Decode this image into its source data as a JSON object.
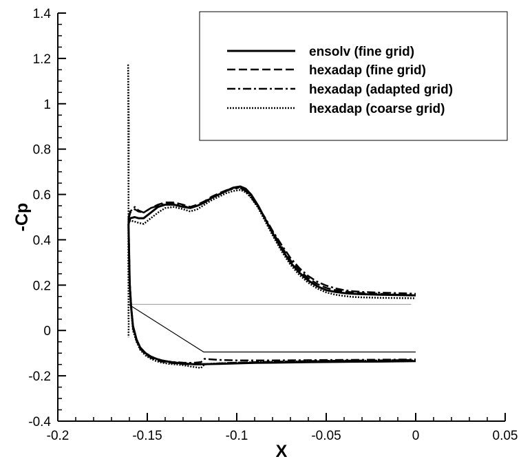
{
  "chart_data": {
    "type": "line",
    "xlabel": "X",
    "ylabel": "-Cp",
    "xlim": [
      -0.2,
      0.05
    ],
    "ylim": [
      -0.4,
      1.4
    ],
    "x_ticks": [
      -0.2,
      -0.15,
      -0.1,
      -0.05,
      0,
      0.05
    ],
    "x_tick_labels": [
      "-0.2",
      "-0.15",
      "-0.1",
      "-0.05",
      "0",
      "0.05"
    ],
    "y_ticks": [
      -0.4,
      -0.2,
      0,
      0.2,
      0.4,
      0.6,
      0.8,
      1,
      1.2,
      1.4
    ],
    "y_tick_labels": [
      "-0.4",
      "-0.2",
      "0",
      "0.2",
      "0.4",
      "0.6",
      "0.8",
      "1",
      "1.2",
      "1.4"
    ],
    "grid": false,
    "legend_position": "top-right",
    "series": [
      {
        "name": "ensolv (fine grid)",
        "dash": "solid",
        "upper": {
          "x": [
            -0.1605,
            -0.1595,
            -0.157,
            -0.155,
            -0.152,
            -0.148,
            -0.144,
            -0.14,
            -0.135,
            -0.13,
            -0.126,
            -0.122,
            -0.118,
            -0.114,
            -0.11,
            -0.106,
            -0.102,
            -0.098,
            -0.095,
            -0.092,
            -0.088,
            -0.084,
            -0.08,
            -0.075,
            -0.07,
            -0.065,
            -0.06,
            -0.055,
            -0.05,
            -0.045,
            -0.04,
            -0.035,
            -0.03,
            -0.02,
            -0.01,
            0.0
          ],
          "y": [
            0.47,
            0.495,
            0.5,
            0.495,
            0.495,
            0.52,
            0.545,
            0.555,
            0.555,
            0.545,
            0.54,
            0.55,
            0.565,
            0.585,
            0.6,
            0.615,
            0.63,
            0.635,
            0.625,
            0.6,
            0.55,
            0.49,
            0.43,
            0.36,
            0.3,
            0.255,
            0.22,
            0.195,
            0.178,
            0.17,
            0.165,
            0.162,
            0.16,
            0.158,
            0.156,
            0.155
          ]
        },
        "lower": {
          "x": [
            -0.1605,
            -0.1598,
            -0.159,
            -0.158,
            -0.156,
            -0.154,
            -0.151,
            -0.148,
            -0.145,
            -0.142,
            -0.138,
            -0.134,
            -0.13,
            -0.125,
            -0.12,
            -0.115,
            -0.11,
            -0.1,
            -0.09,
            -0.08,
            -0.06,
            -0.04,
            -0.02,
            0.0
          ],
          "y": [
            0.47,
            0.2,
            0.1,
            0.02,
            -0.04,
            -0.075,
            -0.1,
            -0.115,
            -0.125,
            -0.132,
            -0.138,
            -0.142,
            -0.146,
            -0.148,
            -0.149,
            -0.148,
            -0.147,
            -0.145,
            -0.143,
            -0.142,
            -0.14,
            -0.138,
            -0.137,
            -0.135
          ]
        }
      },
      {
        "name": "hexadap (fine grid)",
        "dash": "dashed",
        "upper": {
          "x": [
            -0.1605,
            -0.1595,
            -0.157,
            -0.155,
            -0.152,
            -0.148,
            -0.144,
            -0.14,
            -0.135,
            -0.13,
            -0.126,
            -0.122,
            -0.118,
            -0.114,
            -0.11,
            -0.106,
            -0.102,
            -0.098,
            -0.095,
            -0.092,
            -0.088,
            -0.084,
            -0.08,
            -0.075,
            -0.07,
            -0.065,
            -0.06,
            -0.055,
            -0.05,
            -0.045,
            -0.04,
            -0.035,
            -0.03,
            -0.02,
            -0.01,
            0.0
          ],
          "y": [
            0.49,
            0.52,
            0.535,
            0.525,
            0.52,
            0.54,
            0.555,
            0.565,
            0.565,
            0.555,
            0.545,
            0.555,
            0.57,
            0.59,
            0.605,
            0.618,
            0.628,
            0.63,
            0.618,
            0.59,
            0.545,
            0.49,
            0.435,
            0.37,
            0.31,
            0.265,
            0.23,
            0.205,
            0.188,
            0.178,
            0.172,
            0.168,
            0.165,
            0.162,
            0.158,
            0.155
          ]
        },
        "lower": {
          "x": [
            -0.1605,
            -0.1598,
            -0.159,
            -0.158,
            -0.156,
            -0.154,
            -0.151,
            -0.148,
            -0.145,
            -0.142,
            -0.138,
            -0.134,
            -0.13,
            -0.125,
            -0.12,
            -0.115,
            -0.11,
            -0.1,
            -0.09,
            -0.08,
            -0.06,
            -0.04,
            -0.02,
            0.0
          ],
          "y": [
            0.49,
            0.21,
            0.1,
            0.01,
            -0.045,
            -0.08,
            -0.105,
            -0.12,
            -0.13,
            -0.137,
            -0.142,
            -0.145,
            -0.148,
            -0.15,
            -0.15,
            -0.148,
            -0.145,
            -0.142,
            -0.14,
            -0.138,
            -0.135,
            -0.133,
            -0.132,
            -0.13
          ]
        }
      },
      {
        "name": "hexadap (adapted grid)",
        "dash": "dashdot",
        "upper": {
          "x": [
            -0.1605,
            -0.1595,
            -0.157,
            -0.155,
            -0.152,
            -0.148,
            -0.144,
            -0.14,
            -0.135,
            -0.13,
            -0.126,
            -0.122,
            -0.118,
            -0.114,
            -0.11,
            -0.106,
            -0.102,
            -0.098,
            -0.095,
            -0.092,
            -0.088,
            -0.084,
            -0.08,
            -0.075,
            -0.07,
            -0.065,
            -0.06,
            -0.055,
            -0.05,
            -0.045,
            -0.04,
            -0.035,
            -0.03,
            -0.02,
            -0.01,
            0.0
          ],
          "y": [
            0.5,
            0.525,
            0.545,
            0.53,
            0.52,
            0.54,
            0.55,
            0.56,
            0.56,
            0.55,
            0.54,
            0.55,
            0.568,
            0.587,
            0.602,
            0.615,
            0.625,
            0.628,
            0.615,
            0.588,
            0.545,
            0.495,
            0.44,
            0.378,
            0.32,
            0.275,
            0.24,
            0.215,
            0.198,
            0.186,
            0.178,
            0.173,
            0.17,
            0.167,
            0.165,
            0.162
          ]
        },
        "lower": {
          "x": [
            -0.1605,
            -0.1598,
            -0.159,
            -0.158,
            -0.156,
            -0.154,
            -0.151,
            -0.148,
            -0.145,
            -0.142,
            -0.138,
            -0.134,
            -0.13,
            -0.125,
            -0.12,
            -0.118,
            -0.115,
            -0.11,
            -0.1,
            -0.09,
            -0.08,
            -0.06,
            -0.04,
            -0.02,
            0.0
          ],
          "y": [
            0.5,
            0.22,
            0.11,
            0.02,
            -0.04,
            -0.075,
            -0.1,
            -0.115,
            -0.125,
            -0.132,
            -0.137,
            -0.14,
            -0.142,
            -0.143,
            -0.14,
            -0.125,
            -0.127,
            -0.13,
            -0.132,
            -0.132,
            -0.132,
            -0.131,
            -0.13,
            -0.129,
            -0.128
          ]
        }
      },
      {
        "name": "hexadap (coarse grid)",
        "dash": "dotted",
        "upper": {
          "x": [
            -0.1605,
            -0.1595,
            -0.157,
            -0.155,
            -0.152,
            -0.148,
            -0.144,
            -0.14,
            -0.135,
            -0.13,
            -0.126,
            -0.122,
            -0.118,
            -0.114,
            -0.11,
            -0.106,
            -0.102,
            -0.098,
            -0.095,
            -0.092,
            -0.088,
            -0.084,
            -0.08,
            -0.075,
            -0.07,
            -0.065,
            -0.06,
            -0.055,
            -0.05,
            -0.045,
            -0.04,
            -0.035,
            -0.03,
            -0.02,
            -0.01,
            0.0
          ],
          "y": [
            0.47,
            0.485,
            0.48,
            0.475,
            0.47,
            0.495,
            0.52,
            0.54,
            0.545,
            0.535,
            0.525,
            0.535,
            0.555,
            0.575,
            0.59,
            0.605,
            0.615,
            0.62,
            0.61,
            0.585,
            0.54,
            0.48,
            0.42,
            0.35,
            0.29,
            0.245,
            0.21,
            0.185,
            0.168,
            0.158,
            0.152,
            0.148,
            0.146,
            0.144,
            0.143,
            0.142
          ]
        },
        "lower": {
          "x": [
            -0.1605,
            -0.1598,
            -0.159,
            -0.158,
            -0.156,
            -0.154,
            -0.151,
            -0.148,
            -0.145,
            -0.142,
            -0.138,
            -0.134,
            -0.13,
            -0.125,
            -0.12,
            -0.118,
            -0.115,
            -0.11,
            -0.1,
            -0.09,
            -0.08,
            -0.06,
            -0.04,
            -0.02,
            0.0
          ],
          "y": [
            0.47,
            0.2,
            0.09,
            0.0,
            -0.05,
            -0.085,
            -0.11,
            -0.125,
            -0.135,
            -0.142,
            -0.147,
            -0.15,
            -0.153,
            -0.16,
            -0.165,
            -0.15,
            -0.147,
            -0.145,
            -0.142,
            -0.14,
            -0.138,
            -0.136,
            -0.134,
            -0.133,
            -0.132
          ]
        },
        "spike": {
          "x": [
            -0.1605,
            -0.1605,
            -0.1607,
            -0.1603,
            -0.1606,
            -0.1604,
            -0.1605
          ],
          "y": [
            0.05,
            0.6,
            1.17,
            0.9,
            0.3,
            0.03,
            -0.03
          ]
        }
      }
    ],
    "geometry_lines": [
      {
        "name": "upper-surface-line",
        "color": "#a0a0a0",
        "x": [
          -0.1605,
          -0.0025
        ],
        "y": [
          0.115,
          0.115
        ]
      },
      {
        "name": "lower-surface-line",
        "color": "#000000",
        "x": [
          -0.1605,
          -0.1185,
          0.0
        ],
        "y": [
          0.115,
          -0.095,
          -0.095
        ]
      }
    ]
  }
}
